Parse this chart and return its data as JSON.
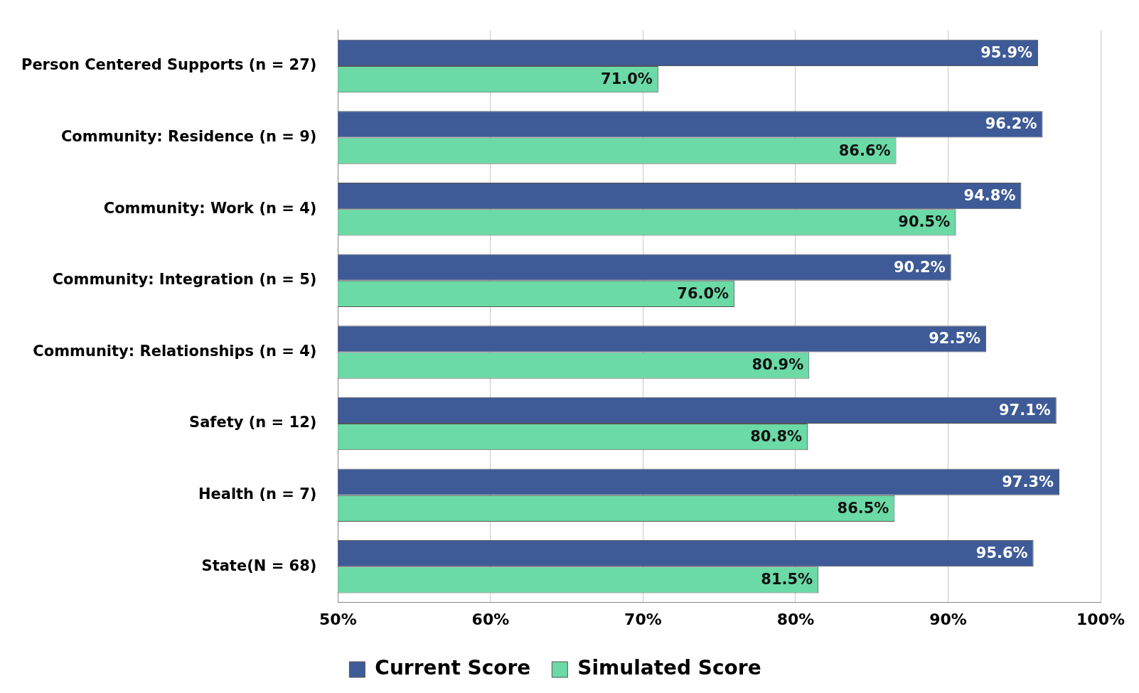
{
  "chart_data": {
    "type": "bar",
    "orientation": "horizontal",
    "categories": [
      "Person Centered Supports (n = 27)",
      "Community: Residence (n = 9)",
      "Community: Work (n = 4)",
      "Community: Integration (n = 5)",
      "Community: Relationships (n = 4)",
      "Safety (n = 12)",
      "Health (n = 7)",
      "State(N = 68)"
    ],
    "series": [
      {
        "name": "Current Score",
        "color": "#3e5b97",
        "values": [
          95.9,
          96.2,
          94.8,
          90.2,
          92.5,
          97.1,
          97.3,
          95.6
        ],
        "value_labels": [
          "95.9%",
          "96.2%",
          "94.8%",
          "90.2%",
          "92.5%",
          "97.1%",
          "97.3%",
          "95.6%"
        ]
      },
      {
        "name": "Simulated Score",
        "color": "#6bdaa6",
        "values": [
          71.0,
          86.6,
          90.5,
          76.0,
          80.9,
          80.8,
          86.5,
          81.5
        ],
        "value_labels": [
          "71.0%",
          "86.6%",
          "90.5%",
          "76.0%",
          "80.9%",
          "80.8%",
          "86.5%",
          "81.5%"
        ]
      }
    ],
    "xlim": [
      50,
      100
    ],
    "xticks": [
      {
        "value": 50,
        "label": "50%"
      },
      {
        "value": 60,
        "label": "60%"
      },
      {
        "value": 70,
        "label": "70%"
      },
      {
        "value": 80,
        "label": "80%"
      },
      {
        "value": 90,
        "label": "90%"
      },
      {
        "value": 100,
        "label": "100%"
      }
    ],
    "grid": "x",
    "legend": "bottom"
  }
}
